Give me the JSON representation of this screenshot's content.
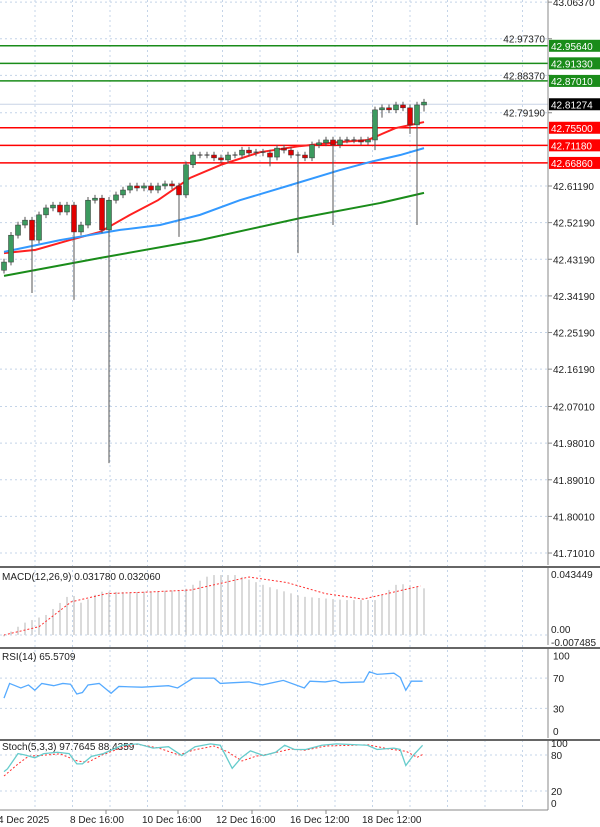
{
  "chart_data": [
    {
      "type": "candlestick",
      "price_axis": {
        "ticks": [
          "43.06370",
          "42.97370",
          "42.88370",
          "42.79190",
          "42.61190",
          "42.52190",
          "42.43190",
          "42.34190",
          "42.25190",
          "42.16190",
          "42.07010",
          "41.98010",
          "41.89010",
          "41.80010",
          "41.71010"
        ],
        "range": [
          41.69,
          43.07
        ]
      },
      "current_price": {
        "label": "42.81274",
        "value": 42.81274,
        "color": "#000000"
      },
      "resistance_levels": [
        {
          "label": "42.95640",
          "value": 42.9564,
          "color": "#1a8c1a"
        },
        {
          "label": "42.91330",
          "value": 42.9133,
          "color": "#1a8c1a"
        },
        {
          "label": "42.87010",
          "value": 42.8701,
          "color": "#1a8c1a"
        }
      ],
      "support_levels": [
        {
          "label": "42.75500",
          "value": 42.755,
          "color": "#ff0000"
        },
        {
          "label": "42.71180",
          "value": 42.7118,
          "color": "#ff0000"
        },
        {
          "label": "42.66860",
          "value": 42.6686,
          "color": "#ff0000"
        }
      ],
      "colors": {
        "up": "#3c9a5f",
        "down": "#e00000",
        "wick": "#555555",
        "grid": "#c4d4e8"
      },
      "candles_ohlc": [
        [
          42.405,
          42.433,
          42.397,
          42.425
        ],
        [
          42.425,
          42.499,
          42.417,
          42.491
        ],
        [
          42.491,
          42.524,
          42.483,
          42.516
        ],
        [
          42.516,
          42.536,
          42.508,
          42.528
        ],
        [
          42.528,
          42.536,
          42.349,
          42.479
        ],
        [
          42.479,
          42.549,
          42.471,
          42.541
        ],
        [
          42.541,
          42.566,
          42.533,
          42.558
        ],
        [
          42.558,
          42.573,
          42.55,
          42.565
        ],
        [
          42.565,
          42.573,
          42.54,
          42.548
        ],
        [
          42.548,
          42.573,
          42.54,
          42.565
        ],
        [
          42.565,
          42.573,
          42.332,
          42.499
        ],
        [
          42.499,
          42.524,
          42.491,
          42.516
        ],
        [
          42.516,
          42.585,
          42.508,
          42.577
        ],
        [
          42.577,
          42.59,
          42.569,
          42.582
        ],
        [
          42.582,
          42.59,
          42.496,
          42.504
        ],
        [
          42.504,
          42.585,
          41.931,
          42.577
        ],
        [
          42.577,
          42.598,
          42.569,
          42.59
        ],
        [
          42.59,
          42.61,
          42.582,
          42.602
        ],
        [
          42.602,
          42.62,
          42.594,
          42.612
        ],
        [
          42.612,
          42.62,
          42.599,
          42.607
        ],
        [
          42.607,
          42.62,
          42.599,
          42.612
        ],
        [
          42.612,
          42.62,
          42.594,
          42.602
        ],
        [
          42.602,
          42.62,
          42.594,
          42.612
        ],
        [
          42.612,
          42.625,
          42.604,
          42.617
        ],
        [
          42.617,
          42.625,
          42.604,
          42.612
        ],
        [
          42.612,
          42.62,
          42.487,
          42.59
        ],
        [
          42.59,
          42.672,
          42.582,
          42.664
        ],
        [
          42.664,
          42.696,
          42.656,
          42.688
        ],
        [
          42.688,
          42.696,
          42.68,
          42.688
        ],
        [
          42.688,
          42.696,
          42.68,
          42.688
        ],
        [
          42.688,
          42.696,
          42.673,
          42.681
        ],
        [
          42.681,
          42.689,
          42.668,
          42.676
        ],
        [
          42.676,
          42.696,
          42.668,
          42.688
        ],
        [
          42.688,
          42.696,
          42.68,
          42.688
        ],
        [
          42.688,
          42.708,
          42.68,
          42.7
        ],
        [
          42.7,
          42.708,
          42.685,
          42.693
        ],
        [
          42.693,
          42.703,
          42.685,
          42.695
        ],
        [
          42.695,
          42.703,
          42.685,
          42.693
        ],
        [
          42.693,
          42.701,
          42.66,
          42.683
        ],
        [
          42.683,
          42.713,
          42.675,
          42.705
        ],
        [
          42.705,
          42.713,
          42.692,
          42.7
        ],
        [
          42.7,
          42.708,
          42.68,
          42.688
        ],
        [
          42.688,
          42.696,
          42.447,
          42.688
        ],
        [
          42.688,
          42.696,
          42.673,
          42.681
        ],
        [
          42.681,
          42.721,
          42.673,
          42.713
        ],
        [
          42.713,
          42.726,
          42.705,
          42.718
        ],
        [
          42.718,
          42.733,
          42.71,
          42.725
        ],
        [
          42.725,
          42.733,
          42.516,
          42.713
        ],
        [
          42.713,
          42.733,
          42.705,
          42.725
        ],
        [
          42.725,
          42.733,
          42.717,
          42.725
        ],
        [
          42.725,
          42.733,
          42.717,
          42.725
        ],
        [
          42.725,
          42.733,
          42.712,
          42.72
        ],
        [
          42.72,
          42.733,
          42.712,
          42.725
        ],
        [
          42.725,
          42.807,
          42.7,
          42.799
        ],
        [
          42.799,
          42.812,
          42.78,
          42.804
        ],
        [
          42.804,
          42.812,
          42.791,
          42.799
        ],
        [
          42.799,
          42.819,
          42.791,
          42.811
        ],
        [
          42.811,
          42.819,
          42.796,
          42.804
        ],
        [
          42.804,
          42.812,
          42.74,
          42.762
        ],
        [
          42.762,
          42.819,
          42.516,
          42.811
        ],
        [
          42.811,
          42.826,
          42.795,
          42.818
        ]
      ],
      "moving_averages": [
        {
          "color": "#ff2020",
          "points": [
            [
              0,
              42.447
            ],
            [
              4.5,
              42.455
            ],
            [
              9.4,
              42.479
            ],
            [
              13.7,
              42.499
            ],
            [
              18,
              42.541
            ],
            [
              22,
              42.577
            ],
            [
              26.6,
              42.632
            ],
            [
              31,
              42.664
            ],
            [
              36.6,
              42.695
            ],
            [
              42.3,
              42.71
            ],
            [
              48,
              42.72
            ],
            [
              52,
              42.725
            ],
            [
              55.9,
              42.754
            ],
            [
              60,
              42.769
            ]
          ]
        },
        {
          "color": "#3399ff",
          "points": [
            [
              0,
              42.45
            ],
            [
              8,
              42.479
            ],
            [
              16.6,
              42.504
            ],
            [
              22.3,
              42.516
            ],
            [
              28,
              42.541
            ],
            [
              33.7,
              42.577
            ],
            [
              40.9,
              42.614
            ],
            [
              48,
              42.651
            ],
            [
              52.3,
              42.671
            ],
            [
              56.6,
              42.688
            ],
            [
              60,
              42.705
            ]
          ]
        },
        {
          "color": "#1a8c1a",
          "points": [
            [
              0,
              42.391
            ],
            [
              13.7,
              42.435
            ],
            [
              28,
              42.479
            ],
            [
              42.3,
              42.533
            ],
            [
              53.7,
              42.57
            ],
            [
              60,
              42.595
            ]
          ]
        }
      ],
      "time_labels": [
        "4 Dec 2025",
        "8 Dec 16:00",
        "10 Dec 16:00",
        "12 Dec 16:00",
        "16 Dec 12:00",
        "18 Dec 12:00"
      ]
    },
    {
      "type": "bar",
      "title": "MACD(12,26,9) 0.031780 0.032060",
      "axis_labels": [
        "0.043449",
        "0.00",
        "-0.007485"
      ],
      "range": [
        -0.007485,
        0.043449
      ],
      "histogram": [
        [
          0,
          -0.001
        ],
        [
          2.7,
          0.0084
        ],
        [
          6,
          0.0145
        ],
        [
          9.6,
          0.0302
        ],
        [
          11.1,
          0.0229
        ],
        [
          13.7,
          0.0314
        ],
        [
          18.6,
          0.031
        ],
        [
          25.7,
          0.0326
        ],
        [
          29.4,
          0.0434
        ],
        [
          33.3,
          0.0434
        ],
        [
          37.7,
          0.035
        ],
        [
          42.6,
          0.0278
        ],
        [
          48.7,
          0.0253
        ],
        [
          53,
          0.0253
        ],
        [
          56.3,
          0.0374
        ],
        [
          60,
          0.0338
        ]
      ],
      "signal": [
        [
          0,
          0
        ],
        [
          5,
          0.006
        ],
        [
          9.6,
          0.024
        ],
        [
          14.7,
          0.03
        ],
        [
          20.2,
          0.031
        ],
        [
          26.7,
          0.0326
        ],
        [
          35,
          0.042
        ],
        [
          40.4,
          0.038
        ],
        [
          45.9,
          0.03
        ],
        [
          51.3,
          0.026
        ],
        [
          59.5,
          0.0355
        ]
      ],
      "colors": {
        "histogram": "#c0c0c0",
        "signal": "#ff3030"
      }
    },
    {
      "type": "line",
      "title": "RSI(14) 65.5709",
      "axis_labels": [
        "100",
        "70",
        "30",
        "0"
      ],
      "range": [
        0,
        100
      ],
      "levels": [
        70,
        30
      ],
      "values": [
        [
          0,
          43.6
        ],
        [
          0.8,
          63
        ],
        [
          2.4,
          57
        ],
        [
          3.5,
          61
        ],
        [
          4.4,
          54
        ],
        [
          5.4,
          63
        ],
        [
          7.1,
          60
        ],
        [
          8.4,
          63
        ],
        [
          9.5,
          62
        ],
        [
          10.4,
          49
        ],
        [
          11.2,
          51
        ],
        [
          12,
          61
        ],
        [
          13.6,
          63
        ],
        [
          15.3,
          50
        ],
        [
          16.4,
          59
        ],
        [
          19.7,
          58
        ],
        [
          23.5,
          60
        ],
        [
          24.8,
          57
        ],
        [
          27,
          70
        ],
        [
          30,
          70
        ],
        [
          30.9,
          63
        ],
        [
          32.8,
          64
        ],
        [
          35,
          65
        ],
        [
          36.9,
          61
        ],
        [
          39.9,
          67
        ],
        [
          42.9,
          57
        ],
        [
          43.7,
          66
        ],
        [
          45.9,
          65
        ],
        [
          47.3,
          67
        ],
        [
          48.1,
          64
        ],
        [
          51.4,
          65
        ],
        [
          52.2,
          78.5
        ],
        [
          53.3,
          75
        ],
        [
          55.7,
          76.6
        ],
        [
          56.6,
          71
        ],
        [
          57.4,
          54
        ],
        [
          58.2,
          66
        ],
        [
          59.8,
          66
        ]
      ],
      "color": "#55aaff"
    },
    {
      "type": "line",
      "title": "Stoch(5,3,3) 97.7645 88.4359",
      "axis_labels": [
        "100",
        "80",
        "20",
        "0"
      ],
      "range": [
        0,
        100
      ],
      "levels": [
        80,
        20
      ],
      "main": [
        [
          0,
          52.3
        ],
        [
          0.5,
          56.9
        ],
        [
          2,
          82.3
        ],
        [
          3,
          80
        ],
        [
          4.4,
          75.4
        ],
        [
          5.7,
          82.3
        ],
        [
          7.6,
          84.6
        ],
        [
          9.3,
          82.3
        ],
        [
          10.4,
          65.2
        ],
        [
          11.2,
          65.2
        ],
        [
          12.5,
          77.7
        ],
        [
          14.2,
          82.3
        ],
        [
          16.9,
          96.2
        ],
        [
          19.1,
          98.5
        ],
        [
          21.3,
          91.5
        ],
        [
          23.5,
          93.8
        ],
        [
          25.4,
          79.1
        ],
        [
          27.3,
          93.8
        ],
        [
          29.5,
          98.5
        ],
        [
          30.9,
          96.2
        ],
        [
          32.6,
          57.8
        ],
        [
          33.9,
          75.4
        ],
        [
          35.2,
          86.9
        ],
        [
          37.1,
          79.1
        ],
        [
          38.8,
          84.6
        ],
        [
          40.1,
          96.2
        ],
        [
          41.5,
          89.2
        ],
        [
          43.1,
          89.2
        ],
        [
          45.4,
          96.2
        ],
        [
          47.5,
          98.5
        ],
        [
          51.9,
          96.2
        ],
        [
          53.3,
          89.2
        ],
        [
          55.7,
          91.5
        ],
        [
          56.6,
          89.2
        ],
        [
          57.4,
          62.5
        ],
        [
          58.5,
          80
        ],
        [
          59.8,
          96.2
        ]
      ],
      "signal": [
        [
          0,
          45
        ],
        [
          2,
          65
        ],
        [
          3.5,
          78
        ],
        [
          6,
          80
        ],
        [
          8,
          82
        ],
        [
          10.5,
          70
        ],
        [
          12,
          68
        ],
        [
          14,
          80
        ],
        [
          17,
          93
        ],
        [
          19,
          98
        ],
        [
          22,
          92
        ],
        [
          25,
          80
        ],
        [
          27,
          88
        ],
        [
          30,
          95
        ],
        [
          32,
          85
        ],
        [
          34,
          70
        ],
        [
          36,
          78
        ],
        [
          38,
          82
        ],
        [
          41,
          90
        ],
        [
          43,
          88
        ],
        [
          46,
          95
        ],
        [
          52,
          97
        ],
        [
          55,
          90
        ],
        [
          57.5,
          86
        ],
        [
          59,
          76
        ],
        [
          60,
          82
        ]
      ],
      "colors": {
        "main": "#66cccc",
        "signal": "#ff3030"
      }
    }
  ]
}
